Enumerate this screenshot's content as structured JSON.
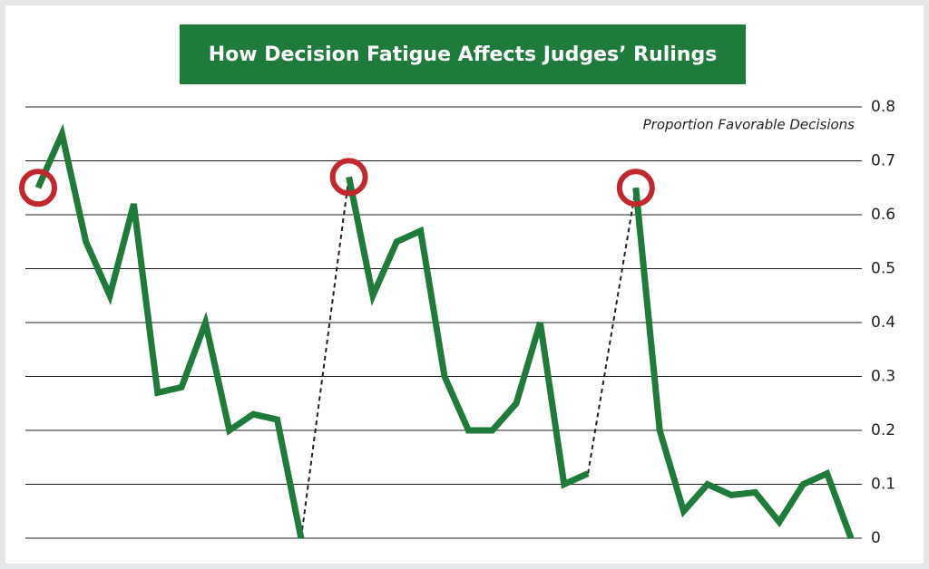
{
  "chart_data": {
    "type": "line",
    "title": "How Decision Fatigue Affects Judges’ Rulings",
    "y_label": "Proportion Favorable Decisions",
    "values": [
      0.65,
      0.75,
      0.55,
      0.45,
      0.62,
      0.27,
      0.28,
      0.4,
      0.2,
      0.23,
      0.22,
      0.0,
      null,
      0.67,
      0.45,
      0.55,
      0.57,
      0.3,
      0.2,
      0.2,
      0.25,
      0.4,
      0.1,
      0.12,
      null,
      0.65,
      0.2,
      0.05,
      0.1,
      0.08,
      0.085,
      0.03,
      0.1,
      0.12,
      0.0
    ],
    "color": "#1e7b3a",
    "ylim": [
      0,
      0.8
    ],
    "yticks": [
      0,
      0.1,
      0.2,
      0.3,
      0.4,
      0.5,
      0.6,
      0.7,
      0.8
    ],
    "grid": true
  }
}
